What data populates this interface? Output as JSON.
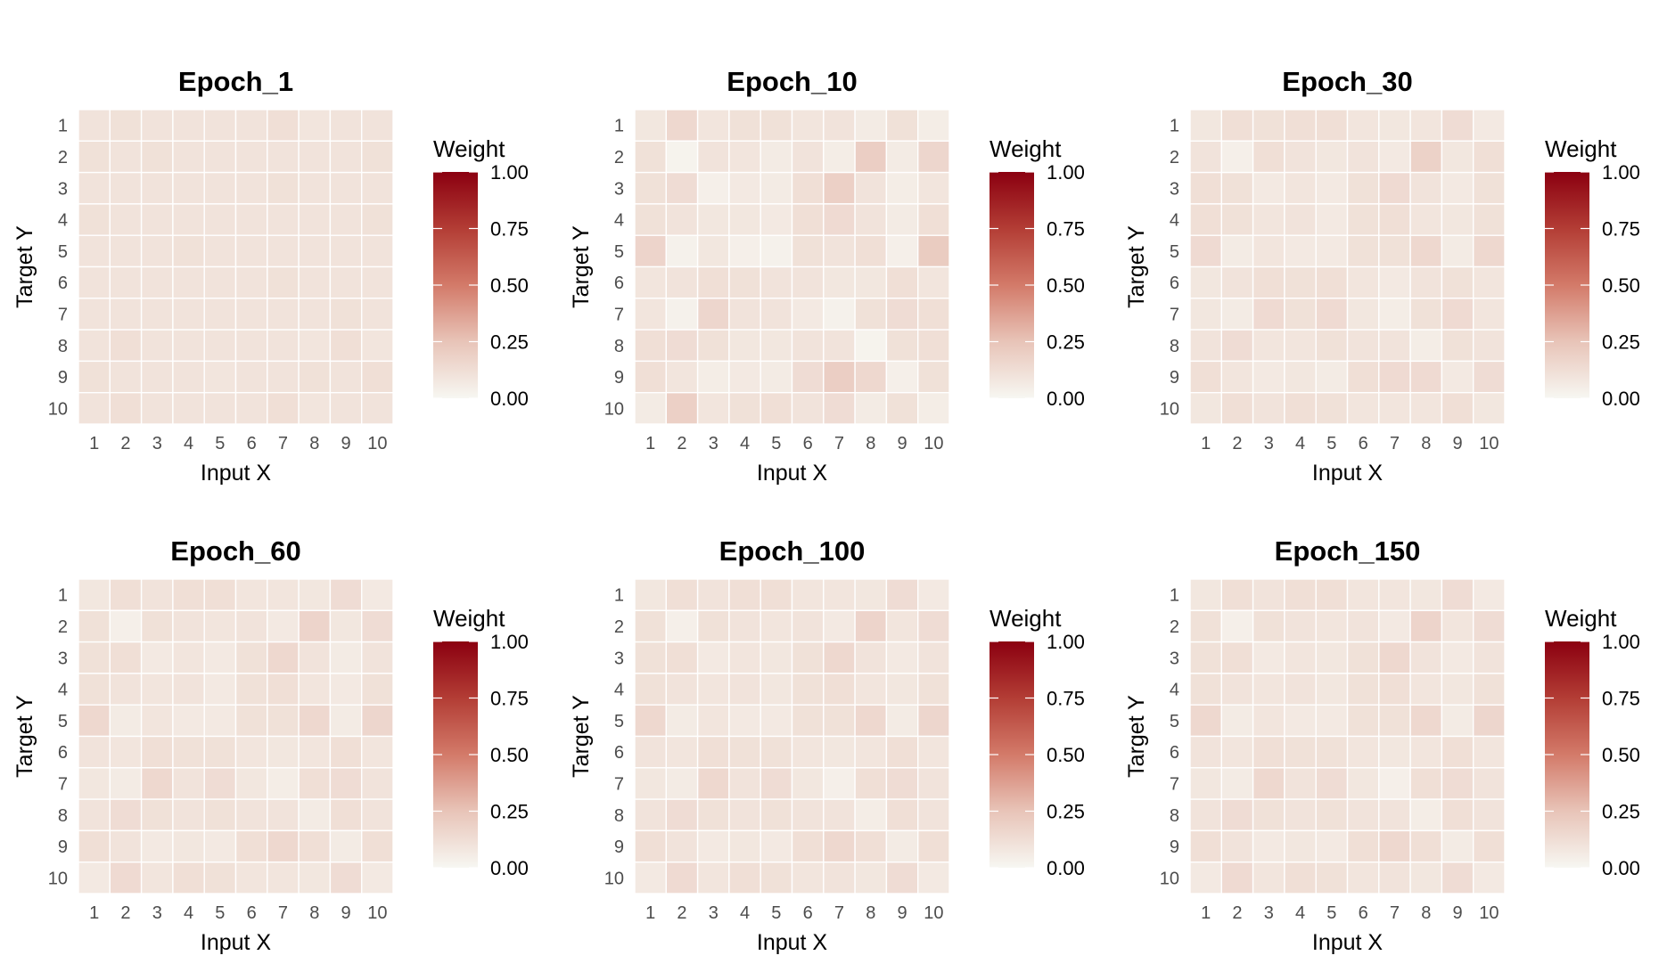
{
  "color_scale": {
    "low": "#f7f7f2",
    "q1": "#e8c4b8",
    "mid": "#d37a69",
    "q3": "#b33d35",
    "high": "#8b0010",
    "domain": [
      0,
      1
    ]
  },
  "chart_data": [
    {
      "type": "heatmap",
      "title": "Epoch_1",
      "xlabel": "Input X",
      "ylabel": "Target Y",
      "x": [
        "1",
        "2",
        "3",
        "4",
        "5",
        "6",
        "7",
        "8",
        "9",
        "10"
      ],
      "y": [
        "1",
        "2",
        "3",
        "4",
        "5",
        "6",
        "7",
        "8",
        "9",
        "10"
      ],
      "legend": {
        "title": "Weight",
        "ticks": [
          "0.00",
          "0.25",
          "0.50",
          "0.75",
          "1.00"
        ]
      },
      "values": [
        [
          0.1,
          0.11,
          0.1,
          0.1,
          0.1,
          0.1,
          0.12,
          0.09,
          0.1,
          0.1
        ],
        [
          0.11,
          0.1,
          0.11,
          0.1,
          0.1,
          0.1,
          0.1,
          0.1,
          0.1,
          0.11
        ],
        [
          0.1,
          0.1,
          0.1,
          0.1,
          0.1,
          0.1,
          0.11,
          0.1,
          0.1,
          0.1
        ],
        [
          0.11,
          0.1,
          0.1,
          0.1,
          0.1,
          0.1,
          0.1,
          0.1,
          0.1,
          0.11
        ],
        [
          0.1,
          0.1,
          0.1,
          0.11,
          0.1,
          0.1,
          0.1,
          0.1,
          0.1,
          0.1
        ],
        [
          0.1,
          0.1,
          0.1,
          0.1,
          0.1,
          0.1,
          0.11,
          0.1,
          0.1,
          0.1
        ],
        [
          0.1,
          0.1,
          0.1,
          0.1,
          0.1,
          0.1,
          0.1,
          0.1,
          0.11,
          0.1
        ],
        [
          0.1,
          0.12,
          0.1,
          0.1,
          0.1,
          0.1,
          0.1,
          0.09,
          0.12,
          0.09
        ],
        [
          0.11,
          0.1,
          0.1,
          0.1,
          0.09,
          0.1,
          0.1,
          0.11,
          0.1,
          0.12
        ],
        [
          0.1,
          0.12,
          0.1,
          0.1,
          0.1,
          0.1,
          0.12,
          0.09,
          0.1,
          0.1
        ]
      ]
    },
    {
      "type": "heatmap",
      "title": "Epoch_10",
      "xlabel": "Input X",
      "ylabel": "Target Y",
      "x": [
        "1",
        "2",
        "3",
        "4",
        "5",
        "6",
        "7",
        "8",
        "9",
        "10"
      ],
      "y": [
        "1",
        "2",
        "3",
        "4",
        "5",
        "6",
        "7",
        "8",
        "9",
        "10"
      ],
      "legend": {
        "title": "Weight",
        "ticks": [
          "0.00",
          "0.25",
          "0.50",
          "0.75",
          "1.00"
        ]
      },
      "values": [
        [
          0.08,
          0.15,
          0.09,
          0.11,
          0.11,
          0.09,
          0.1,
          0.06,
          0.11,
          0.05
        ],
        [
          0.11,
          0.02,
          0.1,
          0.09,
          0.06,
          0.1,
          0.05,
          0.2,
          0.06,
          0.16
        ],
        [
          0.11,
          0.13,
          0.04,
          0.07,
          0.06,
          0.12,
          0.19,
          0.1,
          0.05,
          0.09
        ],
        [
          0.11,
          0.1,
          0.08,
          0.08,
          0.07,
          0.12,
          0.14,
          0.1,
          0.06,
          0.12
        ],
        [
          0.17,
          0.03,
          0.08,
          0.04,
          0.03,
          0.11,
          0.1,
          0.12,
          0.04,
          0.21
        ],
        [
          0.09,
          0.1,
          0.12,
          0.11,
          0.1,
          0.1,
          0.08,
          0.08,
          0.12,
          0.09
        ],
        [
          0.09,
          0.03,
          0.16,
          0.1,
          0.1,
          0.07,
          0.03,
          0.11,
          0.13,
          0.12
        ],
        [
          0.12,
          0.13,
          0.11,
          0.08,
          0.08,
          0.1,
          0.1,
          0.02,
          0.11,
          0.12
        ],
        [
          0.12,
          0.09,
          0.05,
          0.07,
          0.06,
          0.13,
          0.2,
          0.15,
          0.04,
          0.11
        ],
        [
          0.06,
          0.19,
          0.09,
          0.11,
          0.12,
          0.1,
          0.13,
          0.06,
          0.11,
          0.05
        ]
      ]
    },
    {
      "type": "heatmap",
      "title": "Epoch_30",
      "xlabel": "Input X",
      "ylabel": "Target Y",
      "x": [
        "1",
        "2",
        "3",
        "4",
        "5",
        "6",
        "7",
        "8",
        "9",
        "10"
      ],
      "y": [
        "1",
        "2",
        "3",
        "4",
        "5",
        "6",
        "7",
        "8",
        "9",
        "10"
      ],
      "legend": {
        "title": "Weight",
        "ticks": [
          "0.00",
          "0.25",
          "0.50",
          "0.75",
          "1.00"
        ]
      },
      "values": [
        [
          0.08,
          0.12,
          0.11,
          0.12,
          0.12,
          0.09,
          0.08,
          0.09,
          0.13,
          0.07
        ],
        [
          0.1,
          0.04,
          0.12,
          0.1,
          0.08,
          0.1,
          0.07,
          0.18,
          0.08,
          0.12
        ],
        [
          0.12,
          0.11,
          0.07,
          0.09,
          0.07,
          0.11,
          0.14,
          0.1,
          0.07,
          0.11
        ],
        [
          0.12,
          0.11,
          0.09,
          0.1,
          0.07,
          0.11,
          0.12,
          0.09,
          0.08,
          0.11
        ],
        [
          0.14,
          0.06,
          0.09,
          0.07,
          0.07,
          0.11,
          0.11,
          0.15,
          0.06,
          0.15
        ],
        [
          0.08,
          0.1,
          0.12,
          0.11,
          0.12,
          0.09,
          0.07,
          0.1,
          0.11,
          0.09
        ],
        [
          0.08,
          0.06,
          0.14,
          0.11,
          0.14,
          0.08,
          0.05,
          0.11,
          0.14,
          0.09
        ],
        [
          0.1,
          0.13,
          0.09,
          0.09,
          0.11,
          0.1,
          0.1,
          0.05,
          0.11,
          0.1
        ],
        [
          0.12,
          0.09,
          0.07,
          0.08,
          0.06,
          0.12,
          0.14,
          0.14,
          0.07,
          0.13
        ],
        [
          0.08,
          0.12,
          0.1,
          0.12,
          0.11,
          0.09,
          0.09,
          0.09,
          0.12,
          0.08
        ]
      ]
    },
    {
      "type": "heatmap",
      "title": "Epoch_60",
      "xlabel": "Input X",
      "ylabel": "Target Y",
      "x": [
        "1",
        "2",
        "3",
        "4",
        "5",
        "6",
        "7",
        "8",
        "9",
        "10"
      ],
      "y": [
        "1",
        "2",
        "3",
        "4",
        "5",
        "6",
        "7",
        "8",
        "9",
        "10"
      ],
      "legend": {
        "title": "Weight",
        "ticks": [
          "0.00",
          "0.25",
          "0.50",
          "0.75",
          "1.00"
        ]
      },
      "values": [
        [
          0.08,
          0.12,
          0.1,
          0.12,
          0.12,
          0.09,
          0.09,
          0.08,
          0.13,
          0.07
        ],
        [
          0.11,
          0.04,
          0.11,
          0.1,
          0.09,
          0.1,
          0.07,
          0.17,
          0.08,
          0.13
        ],
        [
          0.11,
          0.12,
          0.07,
          0.09,
          0.07,
          0.11,
          0.15,
          0.1,
          0.06,
          0.1
        ],
        [
          0.11,
          0.1,
          0.09,
          0.1,
          0.07,
          0.11,
          0.12,
          0.09,
          0.07,
          0.11
        ],
        [
          0.15,
          0.06,
          0.09,
          0.07,
          0.07,
          0.11,
          0.11,
          0.15,
          0.06,
          0.16
        ],
        [
          0.1,
          0.09,
          0.12,
          0.11,
          0.11,
          0.09,
          0.08,
          0.09,
          0.12,
          0.09
        ],
        [
          0.08,
          0.06,
          0.15,
          0.1,
          0.13,
          0.08,
          0.05,
          0.12,
          0.13,
          0.1
        ],
        [
          0.1,
          0.13,
          0.11,
          0.1,
          0.11,
          0.1,
          0.1,
          0.06,
          0.12,
          0.1
        ],
        [
          0.12,
          0.1,
          0.07,
          0.08,
          0.07,
          0.12,
          0.15,
          0.12,
          0.06,
          0.12
        ],
        [
          0.07,
          0.14,
          0.09,
          0.12,
          0.11,
          0.09,
          0.09,
          0.08,
          0.13,
          0.07
        ]
      ]
    },
    {
      "type": "heatmap",
      "title": "Epoch_100",
      "xlabel": "Input X",
      "ylabel": "Target Y",
      "x": [
        "1",
        "2",
        "3",
        "4",
        "5",
        "6",
        "7",
        "8",
        "9",
        "10"
      ],
      "y": [
        "1",
        "2",
        "3",
        "4",
        "5",
        "6",
        "7",
        "8",
        "9",
        "10"
      ],
      "legend": {
        "title": "Weight",
        "ticks": [
          "0.00",
          "0.25",
          "0.50",
          "0.75",
          "1.00"
        ]
      },
      "values": [
        [
          0.08,
          0.12,
          0.1,
          0.12,
          0.12,
          0.09,
          0.09,
          0.08,
          0.13,
          0.07
        ],
        [
          0.11,
          0.04,
          0.11,
          0.1,
          0.09,
          0.1,
          0.07,
          0.17,
          0.09,
          0.13
        ],
        [
          0.11,
          0.12,
          0.07,
          0.09,
          0.08,
          0.11,
          0.15,
          0.1,
          0.07,
          0.1
        ],
        [
          0.11,
          0.1,
          0.09,
          0.1,
          0.08,
          0.11,
          0.12,
          0.09,
          0.08,
          0.11
        ],
        [
          0.15,
          0.06,
          0.09,
          0.07,
          0.07,
          0.11,
          0.11,
          0.15,
          0.06,
          0.16
        ],
        [
          0.1,
          0.09,
          0.12,
          0.11,
          0.11,
          0.09,
          0.08,
          0.09,
          0.12,
          0.09
        ],
        [
          0.08,
          0.06,
          0.15,
          0.1,
          0.13,
          0.08,
          0.04,
          0.12,
          0.13,
          0.1
        ],
        [
          0.1,
          0.13,
          0.11,
          0.1,
          0.11,
          0.1,
          0.1,
          0.05,
          0.12,
          0.1
        ],
        [
          0.12,
          0.1,
          0.07,
          0.08,
          0.07,
          0.12,
          0.15,
          0.12,
          0.06,
          0.12
        ],
        [
          0.07,
          0.14,
          0.09,
          0.12,
          0.11,
          0.09,
          0.1,
          0.08,
          0.13,
          0.07
        ]
      ]
    },
    {
      "type": "heatmap",
      "title": "Epoch_150",
      "xlabel": "Input X",
      "ylabel": "Target Y",
      "x": [
        "1",
        "2",
        "3",
        "4",
        "5",
        "6",
        "7",
        "8",
        "9",
        "10"
      ],
      "y": [
        "1",
        "2",
        "3",
        "4",
        "5",
        "6",
        "7",
        "8",
        "9",
        "10"
      ],
      "legend": {
        "title": "Weight",
        "ticks": [
          "0.00",
          "0.25",
          "0.50",
          "0.75",
          "1.00"
        ]
      },
      "values": [
        [
          0.08,
          0.12,
          0.1,
          0.12,
          0.12,
          0.09,
          0.09,
          0.08,
          0.13,
          0.07
        ],
        [
          0.11,
          0.04,
          0.11,
          0.1,
          0.09,
          0.1,
          0.07,
          0.17,
          0.09,
          0.13
        ],
        [
          0.11,
          0.12,
          0.07,
          0.09,
          0.08,
          0.11,
          0.15,
          0.1,
          0.07,
          0.1
        ],
        [
          0.11,
          0.1,
          0.09,
          0.1,
          0.08,
          0.11,
          0.12,
          0.09,
          0.08,
          0.11
        ],
        [
          0.15,
          0.06,
          0.09,
          0.07,
          0.07,
          0.11,
          0.11,
          0.15,
          0.06,
          0.16
        ],
        [
          0.1,
          0.09,
          0.12,
          0.11,
          0.11,
          0.09,
          0.08,
          0.09,
          0.12,
          0.09
        ],
        [
          0.08,
          0.06,
          0.15,
          0.1,
          0.13,
          0.08,
          0.04,
          0.12,
          0.13,
          0.1
        ],
        [
          0.1,
          0.13,
          0.11,
          0.1,
          0.11,
          0.1,
          0.1,
          0.05,
          0.12,
          0.1
        ],
        [
          0.12,
          0.1,
          0.07,
          0.08,
          0.07,
          0.12,
          0.15,
          0.12,
          0.06,
          0.12
        ],
        [
          0.07,
          0.14,
          0.09,
          0.12,
          0.11,
          0.09,
          0.1,
          0.08,
          0.13,
          0.07
        ]
      ]
    }
  ]
}
